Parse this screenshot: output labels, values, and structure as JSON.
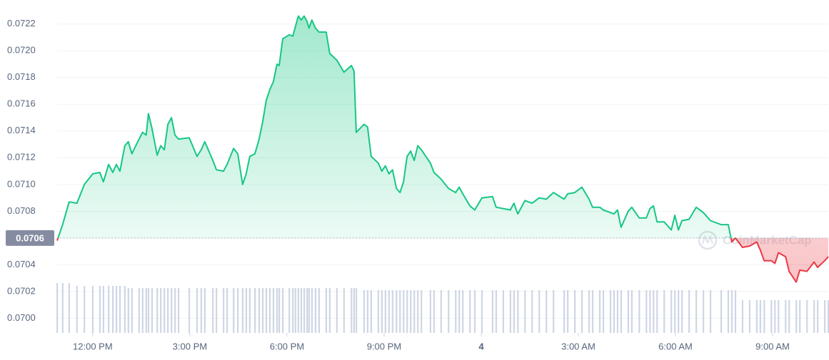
{
  "chart_data": {
    "type": "line",
    "x": [
      10.9,
      11.07,
      11.27,
      11.51,
      11.74,
      12.0,
      12.22,
      12.33,
      12.49,
      12.62,
      12.73,
      12.84,
      12.99,
      13.1,
      13.21,
      13.43,
      13.54,
      13.65,
      13.72,
      13.83,
      13.99,
      14.1,
      14.21,
      14.32,
      14.43,
      14.54,
      14.65,
      14.98,
      15.22,
      15.35,
      15.46,
      15.71,
      15.82,
      16.04,
      16.15,
      16.35,
      16.48,
      16.63,
      16.74,
      16.85,
      17.01,
      17.14,
      17.25,
      17.36,
      17.47,
      17.58,
      17.69,
      17.76,
      17.87,
      18.07,
      18.18,
      18.26,
      18.35,
      18.44,
      18.53,
      18.62,
      18.68,
      18.77,
      18.88,
      18.99,
      19.21,
      19.32,
      19.54,
      19.76,
      19.99,
      20.07,
      20.14,
      20.38,
      20.49,
      20.6,
      20.82,
      20.93,
      21.04,
      21.15,
      21.26,
      21.38,
      21.49,
      21.6,
      21.71,
      21.82,
      21.93,
      22.04,
      22.15,
      22.43,
      22.54,
      22.76,
      22.99,
      23.21,
      23.32,
      23.43,
      23.65,
      23.8,
      24.02,
      24.35,
      24.46,
      24.68,
      24.9,
      25.01,
      25.13,
      25.35,
      25.57,
      25.79,
      26.01,
      26.23,
      26.56,
      26.67,
      26.89,
      27.11,
      27.33,
      27.44,
      27.66,
      27.77,
      27.99,
      28.1,
      28.21,
      28.32,
      28.54,
      28.65,
      28.88,
      29.1,
      29.21,
      29.32,
      29.43,
      29.65,
      29.87,
      29.98,
      30.09,
      30.2,
      30.42,
      30.64,
      30.86,
      31.08,
      31.41,
      31.63,
      31.74,
      31.85,
      32.07,
      32.29,
      32.51,
      32.62,
      32.74,
      32.96,
      33.07,
      33.18,
      33.4,
      33.51,
      33.73,
      33.84,
      34.06,
      34.28,
      34.39,
      34.61,
      34.72
    ],
    "series": [
      {
        "color": "#16c784",
        "below_color": "#ea3943",
        "values": [
          0.07058,
          0.0707,
          0.07087,
          0.07086,
          0.071,
          0.07108,
          0.07109,
          0.07102,
          0.07115,
          0.07109,
          0.07115,
          0.0711,
          0.07129,
          0.07132,
          0.07123,
          0.07134,
          0.07139,
          0.07137,
          0.07153,
          0.07142,
          0.07122,
          0.07129,
          0.07126,
          0.07145,
          0.0715,
          0.07137,
          0.07134,
          0.07135,
          0.07121,
          0.07126,
          0.07132,
          0.07118,
          0.07111,
          0.0711,
          0.07115,
          0.07127,
          0.07123,
          0.071,
          0.07108,
          0.07121,
          0.07123,
          0.07134,
          0.07147,
          0.07163,
          0.07171,
          0.07177,
          0.0719,
          0.07189,
          0.07209,
          0.07212,
          0.07211,
          0.07218,
          0.07226,
          0.07223,
          0.07226,
          0.07222,
          0.07217,
          0.07223,
          0.07217,
          0.07214,
          0.07214,
          0.07198,
          0.07193,
          0.07184,
          0.07189,
          0.07185,
          0.07139,
          0.07145,
          0.07143,
          0.07121,
          0.07116,
          0.0711,
          0.07114,
          0.07108,
          0.07111,
          0.07097,
          0.07094,
          0.07102,
          0.07121,
          0.07125,
          0.07118,
          0.07129,
          0.07126,
          0.07116,
          0.07109,
          0.07104,
          0.07097,
          0.07094,
          0.07098,
          0.07093,
          0.07084,
          0.07081,
          0.0709,
          0.07091,
          0.07083,
          0.07082,
          0.07081,
          0.07086,
          0.07078,
          0.07088,
          0.07086,
          0.0709,
          0.07089,
          0.07094,
          0.07089,
          0.07093,
          0.07094,
          0.07098,
          0.07089,
          0.07083,
          0.07083,
          0.07081,
          0.07079,
          0.07078,
          0.07081,
          0.07068,
          0.0708,
          0.07083,
          0.07075,
          0.07075,
          0.07082,
          0.07084,
          0.07072,
          0.07072,
          0.07066,
          0.07077,
          0.07066,
          0.07073,
          0.07074,
          0.07083,
          0.07079,
          0.07073,
          0.0707,
          0.0707,
          0.07057,
          0.0706,
          0.07053,
          0.07054,
          0.07057,
          0.07051,
          0.07043,
          0.07043,
          0.07041,
          0.07049,
          0.07046,
          0.07035,
          0.07027,
          0.07036,
          0.07035,
          0.07042,
          0.07038,
          0.07043,
          0.07046
        ]
      }
    ],
    "volume": {
      "color": "#cfd6e4",
      "vlim": [
        0,
        100
      ],
      "values": [
        70,
        70,
        70,
        66,
        66,
        66,
        66,
        66,
        66,
        66,
        66,
        66,
        66,
        63,
        63,
        63,
        63,
        63,
        63,
        63,
        63,
        63,
        63,
        63,
        63,
        63,
        63,
        63,
        63,
        63,
        63,
        63,
        63,
        63,
        63,
        63,
        63,
        63,
        63,
        63,
        63,
        63,
        63,
        63,
        63,
        63,
        63,
        63,
        63,
        63,
        63,
        63,
        63,
        63,
        63,
        63,
        63,
        63,
        63,
        63,
        63,
        63,
        63,
        63,
        63,
        63,
        63,
        60,
        60,
        60,
        60,
        60,
        60,
        60,
        60,
        60,
        60,
        60,
        60,
        60,
        60,
        60,
        60,
        60,
        60,
        60,
        60,
        60,
        60,
        60,
        60,
        60,
        60,
        60,
        60,
        60,
        60,
        60,
        60,
        60,
        60,
        60,
        60,
        60,
        60,
        60,
        60,
        60,
        60,
        60,
        60,
        60,
        60,
        60,
        60,
        60,
        60,
        60,
        60,
        60,
        60,
        60,
        60,
        60,
        60,
        60,
        60,
        60,
        60,
        60,
        60,
        60,
        60,
        60,
        60,
        60,
        46,
        46,
        46,
        46,
        46,
        46,
        46,
        46,
        46,
        46,
        46,
        46,
        46,
        46,
        46,
        46,
        46
      ]
    },
    "baseline": {
      "value": 0.0706,
      "label": "0.0706"
    },
    "xlim": [
      10.9,
      34.72
    ],
    "xticks": [
      {
        "value": 12,
        "label": "12:00 PM"
      },
      {
        "value": 15,
        "label": "3:00 PM"
      },
      {
        "value": 18,
        "label": "6:00 PM"
      },
      {
        "value": 21,
        "label": "9:00 PM"
      },
      {
        "value": 24,
        "label": "4"
      },
      {
        "value": 27,
        "label": "3:00 AM"
      },
      {
        "value": 30,
        "label": "6:00 AM"
      },
      {
        "value": 33,
        "label": "9:00 AM"
      }
    ],
    "ylim": [
      0.06989,
      0.07238
    ],
    "yticks": [
      {
        "value": 0.07,
        "label": "0.0700"
      },
      {
        "value": 0.0702,
        "label": "0.0702"
      },
      {
        "value": 0.0704,
        "label": "0.0704"
      },
      {
        "value": 0.0706,
        "label": "0.0706"
      },
      {
        "value": 0.0708,
        "label": "0.0708"
      },
      {
        "value": 0.071,
        "label": "0.0710"
      },
      {
        "value": 0.0712,
        "label": "0.0712"
      },
      {
        "value": 0.0714,
        "label": "0.0714"
      },
      {
        "value": 0.0716,
        "label": "0.0716"
      },
      {
        "value": 0.0718,
        "label": "0.0718"
      },
      {
        "value": 0.072,
        "label": "0.0720"
      },
      {
        "value": 0.0722,
        "label": "0.0722"
      }
    ],
    "grid": true,
    "watermark": "CoinMarketCap"
  }
}
